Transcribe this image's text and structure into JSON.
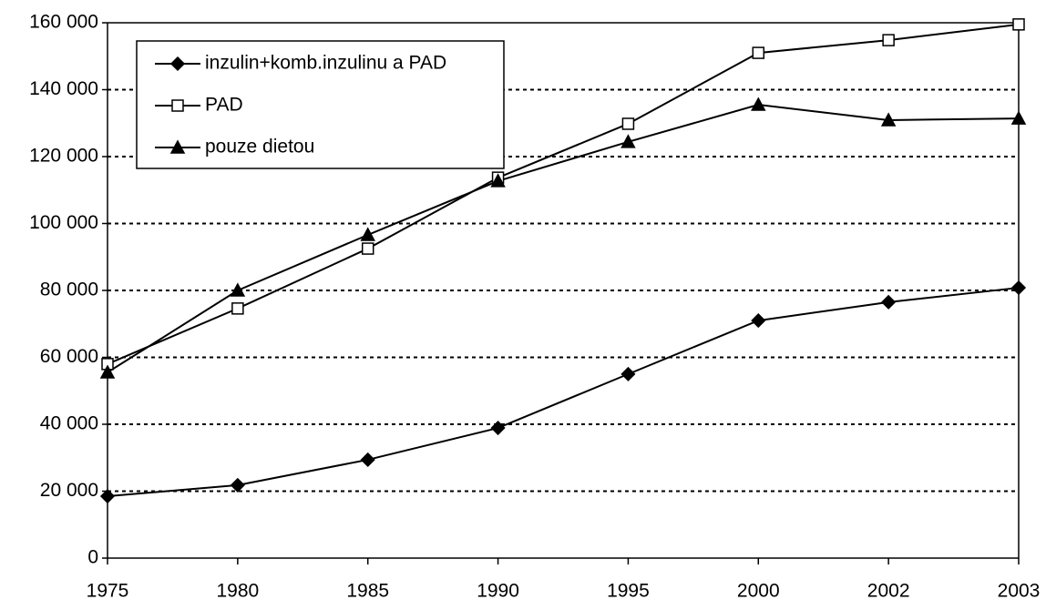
{
  "chart_data": {
    "type": "line",
    "categories": [
      "1975",
      "1980",
      "1985",
      "1990",
      "1995",
      "2000",
      "2002",
      "2003"
    ],
    "series": [
      {
        "name": "inzulin+komb.inzulinu a PAD",
        "color": "#000000",
        "marker": "diamond",
        "values": [
          18500,
          21800,
          29400,
          38900,
          55000,
          71000,
          76500,
          80800
        ]
      },
      {
        "name": "PAD",
        "color": "#000000",
        "marker": "square",
        "values": [
          58000,
          74600,
          92500,
          113700,
          129800,
          151000,
          154800,
          159500
        ]
      },
      {
        "name": "pouze dietou",
        "color": "#000000",
        "marker": "triangle",
        "values": [
          55500,
          80000,
          96600,
          112700,
          124400,
          135500,
          130900,
          131400
        ]
      }
    ],
    "ylim": [
      0,
      160000
    ],
    "yticks": [
      0,
      {
        "value": 20000,
        "label": "20 000"
      },
      {
        "value": 40000,
        "label": "40 000"
      },
      {
        "value": 60000,
        "label": "60 000"
      },
      {
        "value": 80000,
        "label": "80 000"
      },
      {
        "value": 100000,
        "label": "100 000"
      },
      {
        "value": 120000,
        "label": "120 000"
      },
      {
        "value": 140000,
        "label": "140 000"
      },
      {
        "value": 160000,
        "label": "160 000"
      }
    ],
    "grid": true,
    "legend": "top-left"
  }
}
